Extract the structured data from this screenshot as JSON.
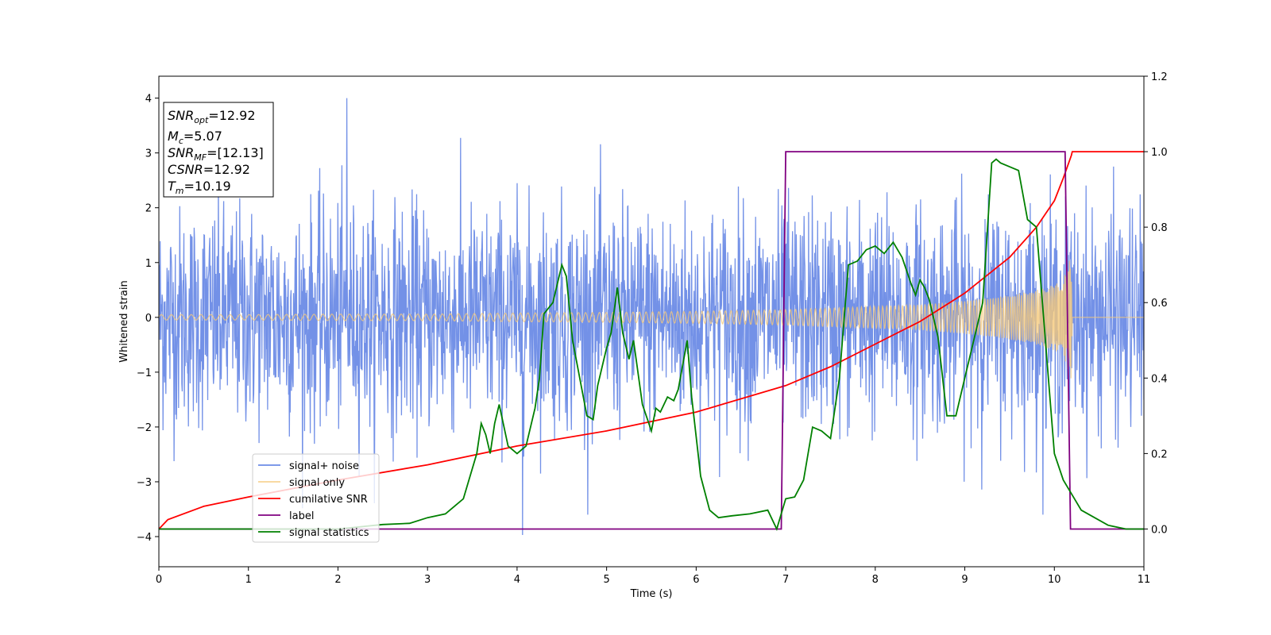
{
  "chart_data": {
    "type": "line",
    "title": "",
    "xlabel": "Time (s)",
    "ylabel": "Whitened strain",
    "xlim": [
      0,
      11
    ],
    "ylim": [
      -4.55,
      4.4
    ],
    "y2lim": [
      -0.1,
      1.2
    ],
    "xticks": [
      0,
      1,
      2,
      3,
      4,
      5,
      6,
      7,
      8,
      9,
      10,
      11
    ],
    "yticks": [
      -4,
      -3,
      -2,
      -1,
      0,
      1,
      2,
      3,
      4
    ],
    "y2ticks": [
      "0.0",
      "0.2",
      "0.4",
      "0.6",
      "0.8",
      "1.0",
      "1.2"
    ],
    "grid": false,
    "legend_position": "lower-left",
    "colors": {
      "signal_noise": "#6b8be6",
      "signal_only": "#f5c97a",
      "cumulative_snr": "#ff0000",
      "label": "#800080",
      "signal_statistics": "#008000"
    },
    "annotation": {
      "snr_opt": {
        "name": "SNR",
        "sub": "opt",
        "value": "=12.92"
      },
      "mc": {
        "name": "M",
        "sub": "c",
        "value": "=5.07"
      },
      "snr_mf": {
        "name": "SNR",
        "sub": "MF",
        "value": "=[12.13]"
      },
      "csnr": {
        "name": "CSNR",
        "value": "=12.92"
      },
      "tm": {
        "name": "T",
        "sub": "m",
        "value": "=10.19"
      }
    },
    "series": [
      {
        "name": "signal+ noise",
        "axis": "left",
        "kind": "noise-band",
        "sigma": 1.0,
        "peak": [
          2.1,
          4.0
        ],
        "trough": [
          4.06,
          -3.97
        ]
      },
      {
        "name": "signal only",
        "axis": "left",
        "kind": "chirp-envelope",
        "x": [
          0,
          1,
          2,
          3,
          4,
          5,
          6,
          7,
          8,
          8.5,
          9,
          9.5,
          9.8,
          10.0,
          10.1,
          10.19,
          10.2,
          11
        ],
        "envelope": [
          0.05,
          0.05,
          0.06,
          0.06,
          0.08,
          0.09,
          0.11,
          0.14,
          0.2,
          0.23,
          0.3,
          0.4,
          0.5,
          0.6,
          0.7,
          1.15,
          0.0,
          0.0
        ]
      },
      {
        "name": "cumilative SNR",
        "axis": "right",
        "x": [
          0,
          0.1,
          0.5,
          1,
          2,
          3,
          4,
          5,
          6,
          7,
          7.5,
          8,
          8.5,
          9,
          9.5,
          9.8,
          10.0,
          10.1,
          10.19,
          10.2,
          11
        ],
        "values": [
          0.0,
          0.025,
          0.06,
          0.085,
          0.13,
          0.17,
          0.22,
          0.26,
          0.31,
          0.38,
          0.43,
          0.49,
          0.55,
          0.625,
          0.72,
          0.8,
          0.87,
          0.93,
          0.99,
          1.0,
          1.0
        ]
      },
      {
        "name": "label",
        "axis": "right",
        "x": [
          0,
          6.95,
          7.0,
          10.12,
          10.18,
          11
        ],
        "values": [
          0,
          0,
          1,
          1,
          0,
          0
        ]
      },
      {
        "name": "signal statistics",
        "axis": "right",
        "x": [
          0,
          1,
          2,
          2.5,
          2.8,
          3.0,
          3.2,
          3.4,
          3.55,
          3.6,
          3.65,
          3.7,
          3.75,
          3.8,
          3.9,
          4.0,
          4.1,
          4.2,
          4.25,
          4.3,
          4.4,
          4.5,
          4.55,
          4.62,
          4.7,
          4.78,
          4.85,
          4.9,
          5.0,
          5.05,
          5.12,
          5.18,
          5.25,
          5.3,
          5.4,
          5.5,
          5.55,
          5.6,
          5.68,
          5.75,
          5.8,
          5.9,
          5.95,
          6.05,
          6.15,
          6.25,
          6.4,
          6.6,
          6.8,
          6.9,
          7.0,
          7.1,
          7.2,
          7.3,
          7.4,
          7.5,
          7.6,
          7.7,
          7.8,
          7.9,
          8.0,
          8.1,
          8.2,
          8.3,
          8.4,
          8.45,
          8.5,
          8.55,
          8.6,
          8.7,
          8.8,
          8.9,
          9.0,
          9.1,
          9.2,
          9.3,
          9.35,
          9.4,
          9.5,
          9.6,
          9.7,
          9.8,
          9.9,
          10.0,
          10.1,
          10.2,
          10.3,
          10.45,
          10.6,
          10.8,
          11
        ],
        "values": [
          0.0,
          0.0,
          0.0,
          0.012,
          0.015,
          0.03,
          0.04,
          0.08,
          0.2,
          0.28,
          0.25,
          0.2,
          0.28,
          0.33,
          0.22,
          0.2,
          0.22,
          0.32,
          0.4,
          0.57,
          0.6,
          0.7,
          0.67,
          0.5,
          0.4,
          0.3,
          0.29,
          0.38,
          0.48,
          0.52,
          0.64,
          0.52,
          0.45,
          0.5,
          0.33,
          0.26,
          0.32,
          0.31,
          0.35,
          0.34,
          0.37,
          0.5,
          0.35,
          0.14,
          0.05,
          0.03,
          0.035,
          0.04,
          0.05,
          0.0,
          0.08,
          0.085,
          0.13,
          0.27,
          0.26,
          0.24,
          0.4,
          0.7,
          0.71,
          0.74,
          0.75,
          0.73,
          0.76,
          0.72,
          0.65,
          0.62,
          0.66,
          0.64,
          0.61,
          0.51,
          0.3,
          0.3,
          0.4,
          0.5,
          0.6,
          0.97,
          0.98,
          0.97,
          0.96,
          0.95,
          0.82,
          0.8,
          0.5,
          0.2,
          0.13,
          0.09,
          0.05,
          0.03,
          0.01,
          0.0,
          0.0
        ]
      }
    ]
  }
}
